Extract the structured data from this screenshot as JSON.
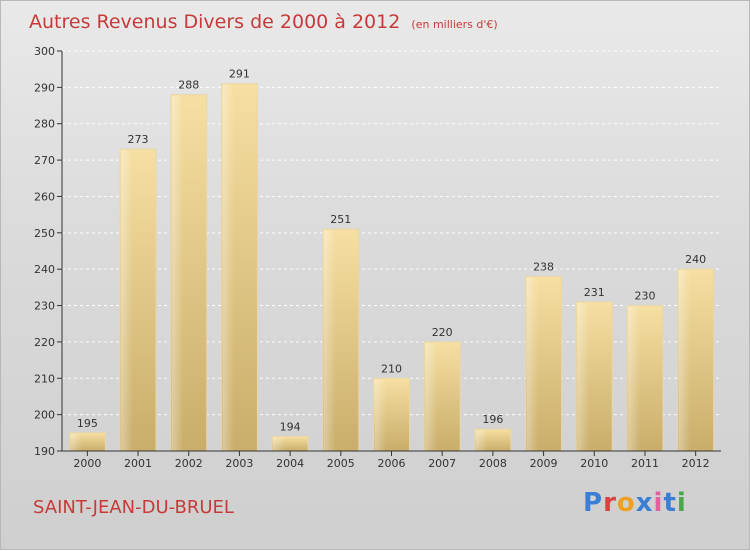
{
  "chart_data": {
    "type": "bar",
    "title": "Autres Revenus Divers de 2000 à 2012",
    "unit_note": "(en milliers d'€)",
    "categories": [
      "2000",
      "2001",
      "2002",
      "2003",
      "2004",
      "2005",
      "2006",
      "2007",
      "2008",
      "2009",
      "2010",
      "2011",
      "2012"
    ],
    "values": [
      195,
      273,
      288,
      291,
      194,
      251,
      210,
      220,
      196,
      238,
      231,
      230,
      240
    ],
    "ylim": [
      190,
      300
    ],
    "yticks": [
      190,
      200,
      210,
      220,
      230,
      240,
      250,
      260,
      270,
      280,
      290,
      300
    ],
    "grid": true,
    "bar_color": "#e8cf8a"
  },
  "footer": {
    "city": "SAINT-JEAN-DU-BRUEL",
    "logo": "Proxiti"
  },
  "colors": {
    "accent": "#c83a3a",
    "logo_letters": [
      "#3a7fd5",
      "#d94141",
      "#f0a020",
      "#3a7fd5",
      "#e060a0",
      "#3a7fd5",
      "#49a84a"
    ]
  }
}
